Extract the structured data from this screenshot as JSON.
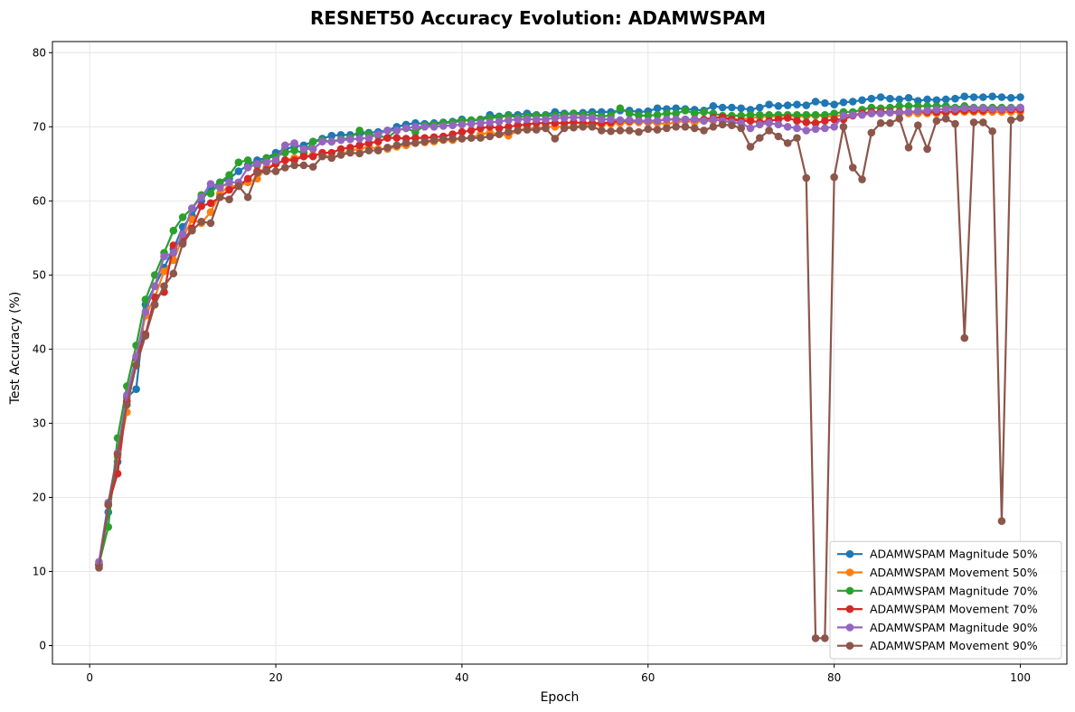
{
  "chart_data": {
    "type": "line",
    "title": "RESNET50 Accuracy Evolution: ADAMWSPAM",
    "xlabel": "Epoch",
    "ylabel": "Test Accuracy (%)",
    "xlim": [
      -4,
      105
    ],
    "ylim": [
      -2.5,
      81.5
    ],
    "xticks": [
      0,
      20,
      40,
      60,
      80,
      100
    ],
    "yticks": [
      0,
      10,
      20,
      30,
      40,
      50,
      60,
      70,
      80
    ],
    "grid": true,
    "legend_position": "lower-right",
    "x": [
      1,
      2,
      3,
      4,
      5,
      6,
      7,
      8,
      9,
      10,
      11,
      12,
      13,
      14,
      15,
      16,
      17,
      18,
      19,
      20,
      21,
      22,
      23,
      24,
      25,
      26,
      27,
      28,
      29,
      30,
      31,
      32,
      33,
      34,
      35,
      36,
      37,
      38,
      39,
      40,
      41,
      42,
      43,
      44,
      45,
      46,
      47,
      48,
      49,
      50,
      51,
      52,
      53,
      54,
      55,
      56,
      57,
      58,
      59,
      60,
      61,
      62,
      63,
      64,
      65,
      66,
      67,
      68,
      69,
      70,
      71,
      72,
      73,
      74,
      75,
      76,
      77,
      78,
      79,
      80,
      81,
      82,
      83,
      84,
      85,
      86,
      87,
      88,
      89,
      90,
      91,
      92,
      93,
      94,
      95,
      96,
      97,
      98,
      99,
      100
    ],
    "series": [
      {
        "name": "ADAMWSPAM Magnitude 50%",
        "color": "#1f77b4",
        "values": [
          11.0,
          18.0,
          24.8,
          33.5,
          34.6,
          46.0,
          48.5,
          51.0,
          53.5,
          56.5,
          58.0,
          60.0,
          61.8,
          62.5,
          63.0,
          64.0,
          64.8,
          65.5,
          65.8,
          66.5,
          67.0,
          67.3,
          67.5,
          68.0,
          68.4,
          68.8,
          68.9,
          68.9,
          69.0,
          69.2,
          69.3,
          69.5,
          70.0,
          70.3,
          70.5,
          70.4,
          70.5,
          70.6,
          70.7,
          71.0,
          70.8,
          71.0,
          71.6,
          71.4,
          71.6,
          71.6,
          71.8,
          71.6,
          71.6,
          72.0,
          71.8,
          71.8,
          71.9,
          72.0,
          72.0,
          72.0,
          72.2,
          72.2,
          72.0,
          72.1,
          72.5,
          72.4,
          72.5,
          72.4,
          72.3,
          72.2,
          72.8,
          72.6,
          72.6,
          72.5,
          72.3,
          72.6,
          73.0,
          72.8,
          72.9,
          73.0,
          72.9,
          73.4,
          73.2,
          73.0,
          73.3,
          73.4,
          73.6,
          73.8,
          74.0,
          73.8,
          73.7,
          73.9,
          73.5,
          73.7,
          73.6,
          73.7,
          73.8,
          74.1,
          74.0,
          74.0,
          74.1,
          74.0,
          73.9,
          74.0
        ]
      },
      {
        "name": "ADAMWSPAM Movement 50%",
        "color": "#ff7f0e",
        "values": [
          11.0,
          19.0,
          25.5,
          31.5,
          39.0,
          44.5,
          47.0,
          50.5,
          52.0,
          55.0,
          57.5,
          57.0,
          58.5,
          61.0,
          62.0,
          62.0,
          62.5,
          63.0,
          64.5,
          65.0,
          65.5,
          65.8,
          66.0,
          66.2,
          66.3,
          65.8,
          66.3,
          66.8,
          67.0,
          67.3,
          67.0,
          67.0,
          67.3,
          67.5,
          67.8,
          67.9,
          68.0,
          68.2,
          68.2,
          68.4,
          68.5,
          69.0,
          69.2,
          69.0,
          68.8,
          69.5,
          69.8,
          69.8,
          70.0,
          70.0,
          70.0,
          70.0,
          70.2,
          70.3,
          70.3,
          70.4,
          70.5,
          70.6,
          70.6,
          70.6,
          70.5,
          70.4,
          70.6,
          70.8,
          70.6,
          70.8,
          70.8,
          71.0,
          71.0,
          71.0,
          71.2,
          71.3,
          71.4,
          71.4,
          71.5,
          71.4,
          71.4,
          71.5,
          71.4,
          71.4,
          71.6,
          71.6,
          71.8,
          71.8,
          72.0,
          71.9,
          71.8,
          71.8,
          71.8,
          71.8,
          71.8,
          71.9,
          72.0,
          72.0,
          72.0,
          72.0,
          72.0,
          72.0,
          72.0,
          72.0
        ]
      },
      {
        "name": "ADAMWSPAM Magnitude 70%",
        "color": "#2ca02c",
        "values": [
          11.0,
          16.0,
          28.0,
          35.0,
          40.5,
          46.7,
          50.0,
          53.0,
          56.0,
          57.8,
          59.0,
          60.8,
          61.0,
          62.5,
          63.5,
          65.2,
          65.5,
          64.8,
          65.8,
          66.0,
          66.5,
          66.8,
          66.5,
          68.0,
          68.2,
          68.0,
          68.3,
          68.5,
          69.5,
          69.0,
          68.8,
          68.5,
          69.5,
          69.8,
          69.3,
          70.2,
          70.3,
          70.5,
          70.6,
          70.8,
          70.9,
          71.0,
          71.2,
          71.3,
          71.5,
          71.3,
          71.4,
          71.5,
          71.5,
          71.5,
          71.6,
          71.8,
          71.6,
          71.6,
          71.4,
          71.5,
          72.5,
          71.8,
          71.5,
          71.5,
          71.6,
          71.8,
          71.8,
          72.2,
          71.8,
          72.0,
          71.8,
          71.5,
          71.5,
          71.5,
          71.6,
          71.6,
          71.6,
          71.6,
          71.6,
          71.6,
          71.6,
          71.6,
          71.6,
          71.8,
          72.0,
          72.0,
          72.3,
          72.6,
          72.5,
          72.6,
          72.8,
          72.8,
          72.8,
          72.8,
          72.8,
          72.8,
          72.6,
          72.8,
          72.6,
          72.6,
          72.6,
          72.6,
          72.6,
          72.6
        ]
      },
      {
        "name": "ADAMWSPAM Movement 70%",
        "color": "#d62728",
        "values": [
          10.8,
          19.0,
          23.2,
          33.0,
          38.8,
          42.0,
          47.0,
          47.7,
          54.0,
          54.5,
          56.3,
          59.3,
          59.7,
          60.5,
          61.5,
          62.0,
          63.0,
          64.0,
          64.2,
          65.0,
          65.5,
          65.5,
          66.0,
          66.0,
          66.5,
          66.5,
          67.0,
          67.2,
          67.5,
          67.8,
          68.0,
          68.5,
          68.5,
          68.4,
          68.5,
          68.5,
          68.6,
          68.7,
          69.0,
          69.3,
          69.5,
          69.8,
          70.0,
          69.8,
          70.0,
          70.2,
          70.3,
          70.5,
          70.5,
          70.5,
          70.5,
          70.6,
          70.5,
          70.5,
          70.5,
          70.6,
          70.8,
          70.8,
          70.8,
          70.8,
          70.8,
          71.0,
          71.0,
          71.0,
          71.0,
          71.0,
          71.2,
          71.3,
          71.0,
          70.8,
          70.8,
          70.6,
          70.8,
          71.0,
          71.2,
          70.8,
          70.6,
          70.5,
          70.8,
          71.0,
          71.0,
          71.5,
          71.8,
          72.0,
          72.0,
          72.0,
          72.0,
          72.0,
          72.1,
          72.0,
          72.0,
          72.0,
          72.1,
          72.2,
          72.2,
          72.2,
          72.3,
          72.3,
          72.3,
          72.3
        ]
      },
      {
        "name": "ADAMWSPAM Magnitude 90%",
        "color": "#9467bd",
        "values": [
          11.3,
          19.3,
          26.0,
          33.8,
          39.0,
          45.0,
          48.5,
          52.5,
          53.0,
          55.5,
          59.0,
          60.5,
          62.3,
          61.8,
          62.5,
          62.5,
          64.5,
          65.0,
          65.2,
          65.5,
          67.5,
          67.8,
          67.0,
          67.0,
          68.0,
          68.0,
          68.2,
          68.3,
          68.4,
          68.5,
          69.0,
          69.5,
          69.5,
          69.8,
          70.0,
          70.0,
          70.0,
          70.1,
          70.2,
          70.3,
          70.4,
          70.5,
          70.6,
          70.7,
          70.9,
          71.0,
          71.0,
          71.0,
          71.0,
          71.2,
          71.2,
          71.3,
          71.2,
          71.2,
          71.0,
          71.0,
          70.9,
          70.9,
          70.8,
          70.8,
          70.8,
          71.0,
          71.0,
          71.0,
          71.0,
          70.8,
          71.0,
          70.8,
          70.6,
          70.5,
          69.8,
          70.3,
          70.5,
          70.3,
          70.0,
          69.8,
          69.5,
          69.7,
          69.8,
          70.0,
          71.5,
          71.6,
          71.6,
          71.8,
          71.8,
          71.9,
          71.9,
          72.0,
          72.1,
          72.2,
          72.3,
          72.4,
          72.4,
          72.5,
          72.5,
          72.5,
          72.4,
          72.4,
          72.5,
          72.6
        ]
      },
      {
        "name": "ADAMWSPAM Movement 90%",
        "color": "#8c564b",
        "values": [
          10.5,
          19.0,
          25.8,
          32.5,
          37.8,
          41.8,
          46.0,
          48.5,
          50.2,
          54.2,
          56.0,
          57.2,
          57.0,
          60.5,
          60.2,
          62.0,
          60.5,
          63.8,
          64.0,
          64.0,
          64.5,
          64.8,
          64.8,
          64.6,
          66.0,
          65.8,
          66.2,
          66.5,
          66.4,
          66.8,
          66.8,
          67.2,
          67.5,
          67.8,
          67.8,
          68.0,
          68.2,
          68.3,
          68.4,
          68.4,
          68.5,
          68.5,
          68.7,
          69.0,
          69.3,
          69.5,
          69.6,
          69.6,
          69.8,
          68.4,
          69.8,
          69.9,
          70.0,
          70.0,
          69.5,
          69.4,
          69.5,
          69.5,
          69.3,
          69.7,
          69.6,
          69.8,
          70.0,
          70.0,
          69.8,
          69.5,
          70.0,
          70.3,
          70.2,
          69.8,
          67.3,
          68.5,
          69.5,
          68.7,
          67.8,
          68.5,
          63.1,
          1.0,
          1.0,
          63.2,
          70.0,
          64.5,
          62.9,
          69.2,
          70.5,
          70.5,
          71.1,
          67.2,
          70.2,
          67.0,
          70.8,
          71.1,
          70.4,
          41.5,
          70.6,
          70.6,
          69.4,
          16.8,
          70.9,
          71.2
        ]
      }
    ]
  }
}
